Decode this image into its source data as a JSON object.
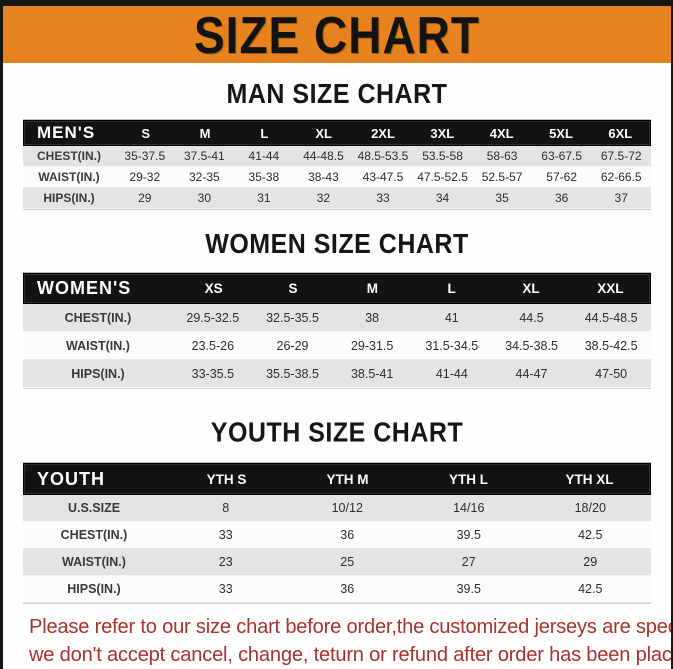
{
  "colors": {
    "banner_bg": "#E6831F",
    "header_row_bg": "#131313",
    "stripe_gray": "#E4E4E4",
    "footer_red": "#A8322C"
  },
  "banner": {
    "title": "SIZE CHART"
  },
  "sections": [
    {
      "heading": "MAN SIZE CHART",
      "table": {
        "header_label": "MEN'S",
        "columns": [
          "S",
          "M",
          "L",
          "XL",
          "2XL",
          "3XL",
          "4XL",
          "5XL",
          "6XL"
        ],
        "rows": [
          {
            "label": "CHEST(IN.)",
            "values": [
              "35-37.5",
              "37.5-41",
              "41-44",
              "44-48.5",
              "48.5-53.5",
              "53.5-58",
              "58-63",
              "63-67.5",
              "67.5-72"
            ]
          },
          {
            "label": "WAIST(IN.)",
            "values": [
              "29-32",
              "32-35",
              "35-38",
              "38-43",
              "43-47.5",
              "47.5-52.5",
              "52.5-57",
              "57-62",
              "62-66.5"
            ]
          },
          {
            "label": "HIPS(IN.)",
            "values": [
              "29",
              "30",
              "31",
              "32",
              "33",
              "34",
              "35",
              "36",
              "37"
            ]
          }
        ]
      }
    },
    {
      "heading": "WOMEN SIZE CHART",
      "table": {
        "header_label": "WOMEN'S",
        "columns": [
          "XS",
          "S",
          "M",
          "L",
          "XL",
          "XXL"
        ],
        "rows": [
          {
            "label": "CHEST(IN.)",
            "values": [
              "29.5-32.5",
              "32.5-35.5",
              "38",
              "41",
              "44.5",
              "44.5-48.5"
            ]
          },
          {
            "label": "WAIST(IN.)",
            "values": [
              "23.5-26",
              "26-29",
              "29-31.5",
              "31.5-34.5",
              "34.5-38.5",
              "38.5-42.5"
            ]
          },
          {
            "label": "HIPS(IN.)",
            "values": [
              "33-35.5",
              "35.5-38.5",
              "38.5-41",
              "41-44",
              "44-47",
              "47-50"
            ]
          }
        ]
      }
    },
    {
      "heading": "YOUTH SIZE CHART",
      "table": {
        "header_label": "YOUTH",
        "columns": [
          "YTH S",
          "YTH M",
          "YTH L",
          "YTH XL"
        ],
        "rows": [
          {
            "label": "U.S.SIZE",
            "values": [
              "8",
              "10/12",
              "14/16",
              "18/20"
            ]
          },
          {
            "label": "CHEST(IN.)",
            "values": [
              "33",
              "36",
              "39.5",
              "42.5"
            ]
          },
          {
            "label": "WAIST(IN.)",
            "values": [
              "23",
              "25",
              "27",
              "29"
            ]
          },
          {
            "label": "HIPS(IN.)",
            "values": [
              "33",
              "36",
              "39.5",
              "42.5"
            ]
          }
        ]
      }
    }
  ],
  "footer": {
    "lines": [
      "Please refer to our size chart before order,the customized jerseys are special products,",
      "we don't accept cancel, change, teturn or refund after order has been placed!"
    ]
  }
}
